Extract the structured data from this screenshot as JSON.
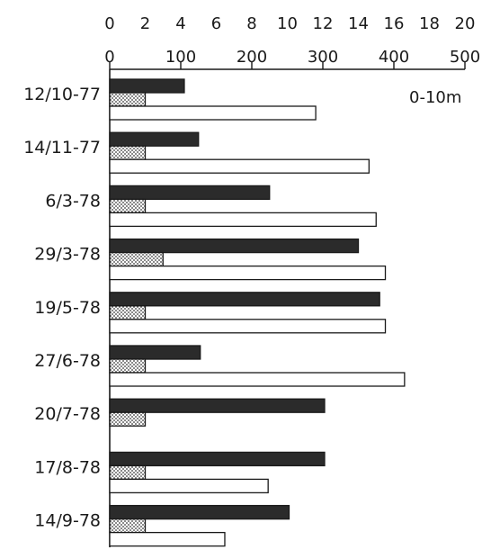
{
  "chart_data": {
    "type": "bar",
    "orientation": "horizontal",
    "annotation": "0-10m",
    "categories": [
      "12/10-77",
      "14/11-77",
      "6/3-78",
      "29/3-78",
      "19/5-78",
      "27/6-78",
      "20/7-78",
      "17/8-78",
      "14/9-78"
    ],
    "series": [
      {
        "axis": "upper",
        "fill": "#2b2b2b",
        "pattern": "solid-dark",
        "values": [
          4.2,
          5.0,
          9.0,
          14.0,
          15.2,
          5.1,
          12.1,
          12.1,
          10.1
        ]
      },
      {
        "axis": "upper",
        "fill": "#ffffff",
        "pattern": "stippled",
        "values": [
          2.0,
          2.0,
          2.0,
          3.0,
          2.0,
          2.0,
          2.0,
          2.0,
          2.0
        ]
      },
      {
        "axis": "lower",
        "fill": "#ffffff",
        "pattern": "open",
        "values": [
          290,
          365,
          375,
          388,
          388,
          415,
          0,
          223,
          162
        ]
      }
    ],
    "axes": {
      "upper": {
        "range": [
          0,
          20
        ],
        "ticks": [
          "0",
          "2",
          "4",
          "6",
          "8",
          "10",
          "12",
          "14",
          "16",
          "18",
          "20"
        ]
      },
      "lower": {
        "range": [
          0,
          500
        ],
        "ticks": [
          "0",
          "100",
          "200",
          "300",
          "400",
          "500"
        ]
      }
    },
    "grid": false,
    "legend": "none"
  }
}
